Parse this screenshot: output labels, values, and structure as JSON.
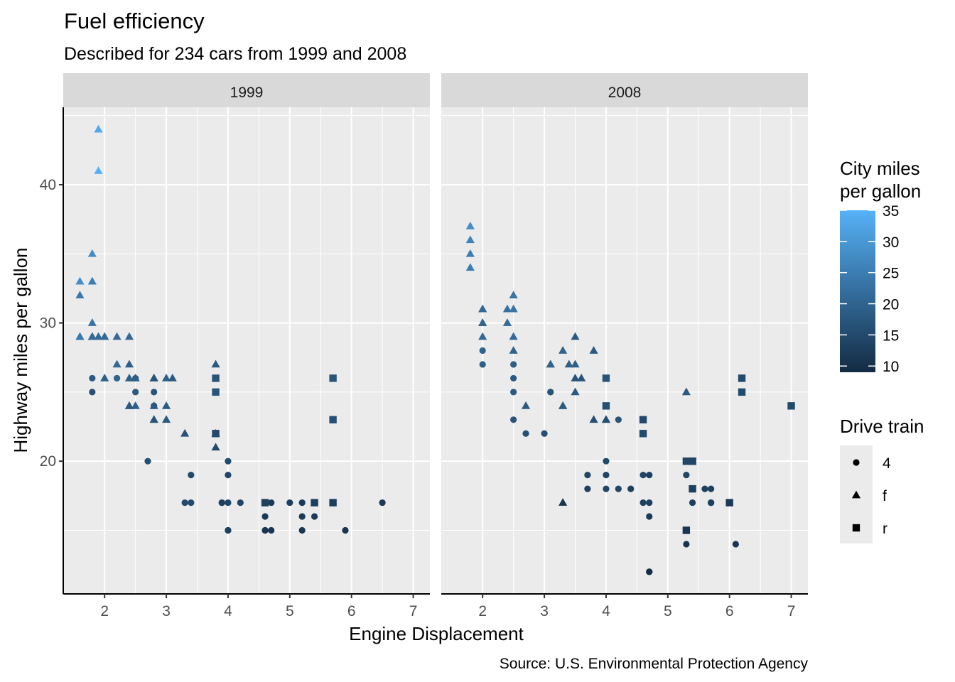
{
  "chart_data": {
    "type": "scatter",
    "title": "Fuel efficiency",
    "subtitle": "Described for 234 cars from 1999 and 2008",
    "caption": "Source: U.S. Environmental Protection Agency",
    "xlabel": "Engine Displacement",
    "ylabel": "Highway miles per gallon",
    "xlim": [
      1.33,
      7.27
    ],
    "ylim": [
      10.4,
      45.6
    ],
    "x_ticks": [
      2,
      3,
      4,
      5,
      6,
      7
    ],
    "y_ticks": [
      20,
      30,
      40
    ],
    "grid": true,
    "facets": [
      "1999",
      "2008"
    ],
    "color_legend": {
      "title": "City miles per gallon",
      "range": [
        9,
        35
      ],
      "ticks": [
        10,
        15,
        20,
        25,
        30,
        35
      ],
      "low_color": "#132B43",
      "high_color": "#56B1F7"
    },
    "shape_legend": {
      "title": "Drive train",
      "entries": [
        "4",
        "f",
        "r"
      ],
      "shapes": [
        "circle",
        "triangle",
        "square"
      ]
    },
    "panels": [
      {
        "facet": "1999",
        "points": [
          [
            1.8,
            29,
            18,
            "f"
          ],
          [
            1.8,
            29,
            21,
            "f"
          ],
          [
            2.8,
            26,
            16,
            "f"
          ],
          [
            1.8,
            26,
            18,
            "4"
          ],
          [
            1.8,
            25,
            16,
            "4"
          ],
          [
            2.8,
            25,
            17,
            "4"
          ],
          [
            2.8,
            24,
            15,
            "4"
          ],
          [
            2.4,
            26,
            19,
            "f"
          ],
          [
            3.0,
            26,
            19,
            "f"
          ],
          [
            3.1,
            26,
            18,
            "f"
          ],
          [
            5.7,
            26,
            17,
            "r"
          ],
          [
            5.7,
            23,
            16,
            "r"
          ],
          [
            3.8,
            22,
            15,
            "r"
          ],
          [
            4.6,
            17,
            13,
            "r"
          ],
          [
            5.4,
            17,
            13,
            "r"
          ],
          [
            3.8,
            21,
            15,
            "f"
          ],
          [
            3.8,
            22,
            15,
            "f"
          ],
          [
            5.7,
            17,
            13,
            "r"
          ],
          [
            5.2,
            17,
            12,
            "4"
          ],
          [
            5.9,
            15,
            11,
            "4"
          ],
          [
            3.9,
            17,
            13,
            "4"
          ],
          [
            4.7,
            17,
            12,
            "4"
          ],
          [
            5.2,
            15,
            11,
            "4"
          ],
          [
            4.7,
            15,
            11,
            "4"
          ],
          [
            3.9,
            17,
            13,
            "4"
          ],
          [
            4.0,
            17,
            14,
            "4"
          ],
          [
            4.6,
            17,
            13,
            "4"
          ],
          [
            5.0,
            17,
            13,
            "4"
          ],
          [
            4.6,
            17,
            13,
            "4"
          ],
          [
            5.4,
            16,
            12,
            "4"
          ],
          [
            4.0,
            15,
            11,
            "4"
          ],
          [
            4.6,
            15,
            11,
            "4"
          ],
          [
            6.5,
            17,
            12,
            "4"
          ],
          [
            4.6,
            16,
            12,
            "4"
          ],
          [
            5.2,
            16,
            12,
            "4"
          ],
          [
            4.6,
            15,
            11,
            "4"
          ],
          [
            2.5,
            24,
            19,
            "f"
          ],
          [
            2.4,
            24,
            18,
            "f"
          ],
          [
            2.5,
            25,
            18,
            "4"
          ],
          [
            2.2,
            26,
            21,
            "4"
          ],
          [
            1.8,
            29,
            21,
            "f"
          ],
          [
            1.6,
            33,
            28,
            "f"
          ],
          [
            1.6,
            32,
            24,
            "f"
          ],
          [
            1.6,
            29,
            24,
            "f"
          ],
          [
            1.6,
            29,
            24,
            "f"
          ],
          [
            2.0,
            26,
            19,
            "f"
          ],
          [
            2.0,
            29,
            21,
            "f"
          ],
          [
            2.2,
            27,
            21,
            "f"
          ],
          [
            2.2,
            29,
            21,
            "f"
          ],
          [
            2.4,
            29,
            21,
            "f"
          ],
          [
            2.4,
            27,
            19,
            "f"
          ],
          [
            2.8,
            24,
            18,
            "f"
          ],
          [
            2.8,
            23,
            16,
            "f"
          ],
          [
            2.7,
            20,
            16,
            "4"
          ],
          [
            3.3,
            22,
            17,
            "f"
          ],
          [
            3.4,
            19,
            15,
            "4"
          ],
          [
            3.4,
            17,
            15,
            "4"
          ],
          [
            3.3,
            17,
            15,
            "4"
          ],
          [
            4.0,
            19,
            14,
            "4"
          ],
          [
            4.0,
            20,
            15,
            "4"
          ],
          [
            4.0,
            15,
            13,
            "4"
          ],
          [
            1.8,
            30,
            23,
            "f"
          ],
          [
            1.8,
            33,
            25,
            "f"
          ],
          [
            1.8,
            35,
            28,
            "f"
          ],
          [
            1.9,
            44,
            33,
            "f"
          ],
          [
            1.9,
            41,
            35,
            "f"
          ],
          [
            1.9,
            29,
            21,
            "f"
          ],
          [
            2.0,
            29,
            21,
            "f"
          ],
          [
            2.8,
            23,
            17,
            "f"
          ],
          [
            2.5,
            26,
            18,
            "4"
          ],
          [
            2.2,
            26,
            20,
            "4"
          ],
          [
            2.5,
            26,
            19,
            "f"
          ],
          [
            3.0,
            24,
            18,
            "f"
          ],
          [
            2.4,
            24,
            18,
            "f"
          ],
          [
            2.8,
            26,
            17,
            "f"
          ],
          [
            3.0,
            23,
            18,
            "f"
          ],
          [
            3.8,
            25,
            17,
            "r"
          ],
          [
            3.8,
            26,
            17,
            "r"
          ],
          [
            3.8,
            27,
            18,
            "f"
          ],
          [
            4.2,
            17,
            14,
            "4"
          ]
        ]
      },
      {
        "facet": "2008",
        "points": [
          [
            2.0,
            31,
            21,
            "f"
          ],
          [
            2.0,
            30,
            21,
            "f"
          ],
          [
            3.1,
            27,
            18,
            "f"
          ],
          [
            2.0,
            28,
            20,
            "4"
          ],
          [
            2.0,
            27,
            19,
            "4"
          ],
          [
            3.1,
            25,
            17,
            "4"
          ],
          [
            3.1,
            25,
            17,
            "4"
          ],
          [
            3.5,
            26,
            17,
            "f"
          ],
          [
            3.5,
            29,
            18,
            "f"
          ],
          [
            3.8,
            28,
            18,
            "f"
          ],
          [
            6.2,
            26,
            15,
            "r"
          ],
          [
            6.2,
            25,
            15,
            "r"
          ],
          [
            7.0,
            24,
            15,
            "r"
          ],
          [
            5.3,
            15,
            11,
            "r"
          ],
          [
            5.3,
            20,
            14,
            "r"
          ],
          [
            3.3,
            24,
            19,
            "f"
          ],
          [
            3.3,
            24,
            18,
            "f"
          ],
          [
            3.3,
            17,
            11,
            "f"
          ],
          [
            3.8,
            23,
            16,
            "f"
          ],
          [
            4.0,
            23,
            16,
            "f"
          ],
          [
            4.0,
            23,
            16,
            "f"
          ],
          [
            4.7,
            17,
            13,
            "4"
          ],
          [
            4.7,
            12,
            9,
            "4"
          ],
          [
            5.7,
            17,
            13,
            "4"
          ],
          [
            6.1,
            14,
            11,
            "4"
          ],
          [
            4.7,
            19,
            13,
            "4"
          ],
          [
            4.7,
            16,
            12,
            "4"
          ],
          [
            4.7,
            12,
            9,
            "4"
          ],
          [
            5.7,
            17,
            13,
            "4"
          ],
          [
            5.3,
            19,
            14,
            "4"
          ],
          [
            5.3,
            14,
            11,
            "4"
          ],
          [
            5.7,
            17,
            13,
            "4"
          ],
          [
            4.0,
            19,
            14,
            "4"
          ],
          [
            4.0,
            18,
            14,
            "4"
          ],
          [
            4.6,
            19,
            14,
            "4"
          ],
          [
            5.4,
            17,
            13,
            "4"
          ],
          [
            4.6,
            17,
            13,
            "4"
          ],
          [
            5.4,
            20,
            15,
            "r"
          ],
          [
            5.4,
            18,
            13,
            "r"
          ],
          [
            4.0,
            26,
            17,
            "r"
          ],
          [
            4.0,
            24,
            16,
            "r"
          ],
          [
            4.6,
            23,
            15,
            "r"
          ],
          [
            4.6,
            22,
            15,
            "r"
          ],
          [
            5.4,
            20,
            14,
            "r"
          ],
          [
            6.0,
            17,
            12,
            "r"
          ],
          [
            1.8,
            37,
            28,
            "f"
          ],
          [
            1.8,
            36,
            26,
            "f"
          ],
          [
            1.8,
            35,
            25,
            "f"
          ],
          [
            1.8,
            34,
            25,
            "f"
          ],
          [
            2.0,
            31,
            21,
            "f"
          ],
          [
            2.0,
            30,
            20,
            "f"
          ],
          [
            2.0,
            29,
            21,
            "f"
          ],
          [
            2.4,
            30,
            21,
            "f"
          ],
          [
            2.4,
            31,
            22,
            "f"
          ],
          [
            2.5,
            32,
            23,
            "f"
          ],
          [
            2.5,
            31,
            23,
            "f"
          ],
          [
            2.5,
            29,
            21,
            "f"
          ],
          [
            2.5,
            28,
            20,
            "f"
          ],
          [
            2.5,
            25,
            18,
            "4"
          ],
          [
            2.5,
            27,
            19,
            "4"
          ],
          [
            2.5,
            26,
            18,
            "4"
          ],
          [
            2.5,
            23,
            17,
            "4"
          ],
          [
            2.7,
            24,
            18,
            "f"
          ],
          [
            2.7,
            22,
            16,
            "4"
          ],
          [
            3.0,
            22,
            16,
            "4"
          ],
          [
            3.3,
            28,
            20,
            "f"
          ],
          [
            3.5,
            27,
            19,
            "f"
          ],
          [
            3.6,
            26,
            17,
            "f"
          ],
          [
            3.7,
            19,
            14,
            "4"
          ],
          [
            3.7,
            18,
            13,
            "4"
          ],
          [
            4.0,
            20,
            15,
            "4"
          ],
          [
            4.2,
            18,
            14,
            "4"
          ],
          [
            4.4,
            18,
            13,
            "4"
          ],
          [
            4.2,
            23,
            17,
            "4"
          ],
          [
            5.6,
            18,
            13,
            "4"
          ],
          [
            5.7,
            18,
            13,
            "4"
          ],
          [
            5.3,
            25,
            18,
            "f"
          ],
          [
            3.5,
            25,
            18,
            "f"
          ],
          [
            3.1,
            27,
            20,
            "f"
          ],
          [
            3.4,
            27,
            19,
            "f"
          ]
        ]
      }
    ]
  }
}
